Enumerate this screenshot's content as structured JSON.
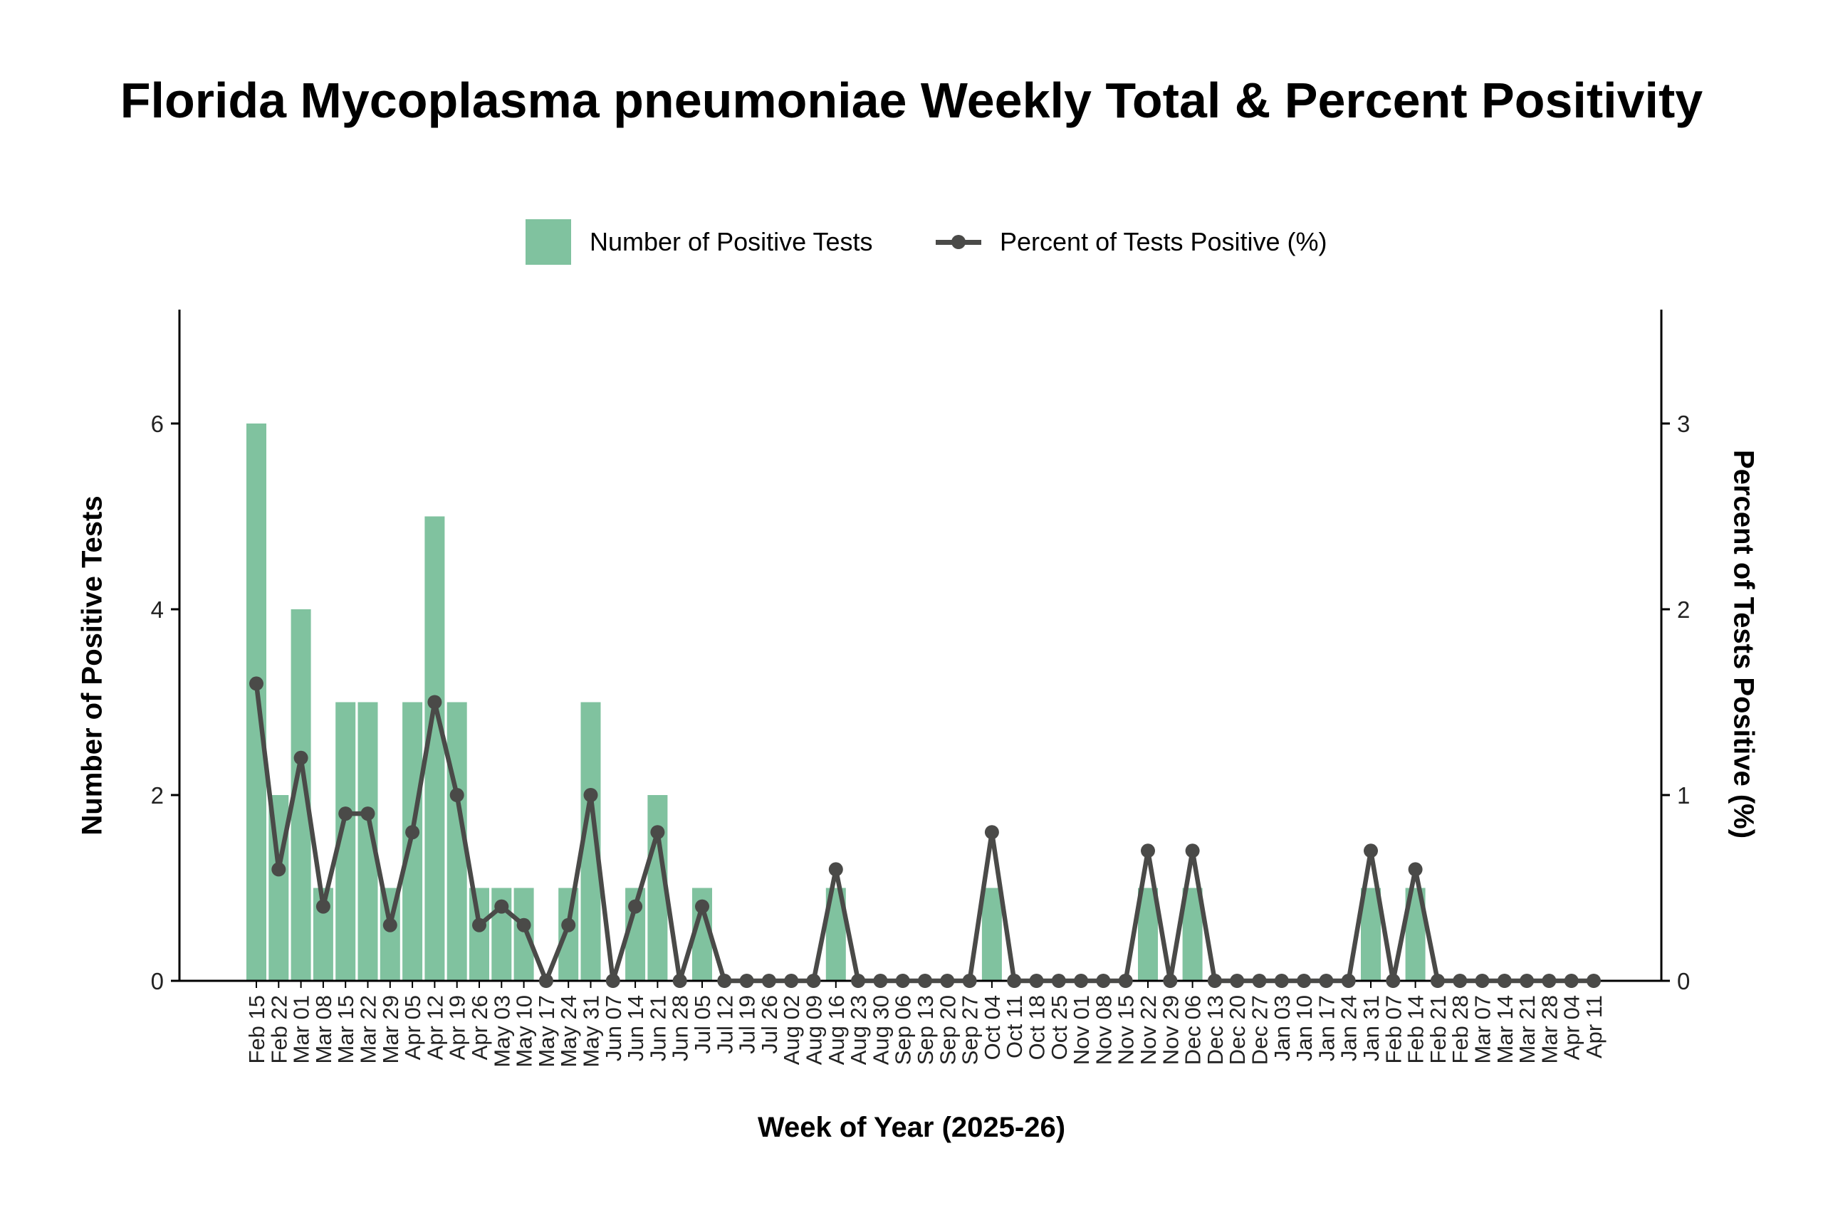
{
  "title": "Florida Mycoplasma pneumoniae Weekly Total & Percent Positivity",
  "legend": {
    "bar_label": "Number of Positive Tests",
    "line_label": "Percent of Tests Positive (%)"
  },
  "colors": {
    "bar": "#80c29f",
    "line": "#4a4a48",
    "axis": "#000000"
  },
  "chart_data": {
    "type": "bar",
    "title": "Florida Mycoplasma pneumoniae Weekly Total & Percent Positivity",
    "xlabel": "Week of Year (2025-26)",
    "ylabel": "Number of Positive Tests",
    "y2label": "Percent of Tests Positive (%)",
    "ylim": [
      0,
      7.2
    ],
    "y2lim": [
      0,
      3.6
    ],
    "yticks": [
      0,
      2,
      4,
      6
    ],
    "y2ticks": [
      0,
      1,
      2,
      3
    ],
    "grid": false,
    "legend_position": "top",
    "categories": [
      "Feb 15",
      "Feb 22",
      "Mar 01",
      "Mar 08",
      "Mar 15",
      "Mar 22",
      "Mar 29",
      "Apr 05",
      "Apr 12",
      "Apr 19",
      "Apr 26",
      "May 03",
      "May 10",
      "May 17",
      "May 24",
      "May 31",
      "Jun 07",
      "Jun 14",
      "Jun 21",
      "Jun 28",
      "Jul 05",
      "Jul 12",
      "Jul 19",
      "Jul 26",
      "Aug 02",
      "Aug 09",
      "Aug 16",
      "Aug 23",
      "Aug 30",
      "Sep 06",
      "Sep 13",
      "Sep 20",
      "Sep 27",
      "Oct 04",
      "Oct 11",
      "Oct 18",
      "Oct 25",
      "Nov 01",
      "Nov 08",
      "Nov 15",
      "Nov 22",
      "Nov 29",
      "Dec 06",
      "Dec 13",
      "Dec 20",
      "Dec 27",
      "Jan 03",
      "Jan 10",
      "Jan 17",
      "Jan 24",
      "Jan 31",
      "Feb 07",
      "Feb 14",
      "Feb 21",
      "Feb 28",
      "Mar 07",
      "Mar 14",
      "Mar 21",
      "Mar 28",
      "Apr 04",
      "Apr 11"
    ],
    "series": [
      {
        "name": "Number of Positive Tests",
        "type": "bar",
        "axis": "left",
        "values": [
          6,
          2,
          4,
          1,
          3,
          3,
          1,
          3,
          5,
          3,
          1,
          1,
          1,
          0,
          1,
          3,
          0,
          1,
          2,
          0,
          1,
          0,
          0,
          0,
          0,
          0,
          1,
          0,
          0,
          0,
          0,
          0,
          0,
          1,
          0,
          0,
          0,
          0,
          0,
          0,
          1,
          0,
          1,
          0,
          0,
          0,
          0,
          0,
          0,
          0,
          1,
          0,
          1,
          0,
          0,
          0,
          0,
          0,
          0,
          0,
          0
        ]
      },
      {
        "name": "Percent of Tests Positive (%)",
        "type": "line",
        "axis": "right",
        "values": [
          1.6,
          0.6,
          1.2,
          0.4,
          0.9,
          0.9,
          0.3,
          0.8,
          1.5,
          1.0,
          0.3,
          0.4,
          0.3,
          0,
          0.3,
          1.0,
          0,
          0.4,
          0.8,
          0,
          0.4,
          0,
          0,
          0,
          0,
          0,
          0.6,
          0,
          0,
          0,
          0,
          0,
          0,
          0.8,
          0,
          0,
          0,
          0,
          0,
          0,
          0.7,
          0,
          0.7,
          0,
          0,
          0,
          0,
          0,
          0,
          0,
          0.7,
          0,
          0.6,
          0,
          0,
          0,
          0,
          0,
          0,
          0,
          0
        ]
      }
    ]
  }
}
